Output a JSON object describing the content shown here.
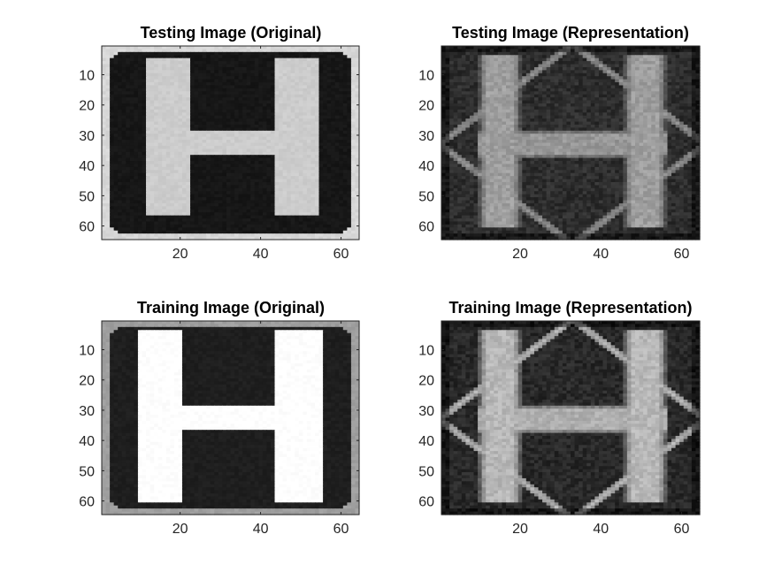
{
  "figure": {
    "background": "#ffffff",
    "axes_color": "#262626",
    "colormap": "gray"
  },
  "chart_data": [
    {
      "type": "heatmap",
      "id": "test-original",
      "title": "Testing Image (Original)",
      "xlim": [
        0.5,
        64.5
      ],
      "ylim": [
        0.5,
        64.5
      ],
      "xticks": [
        20,
        40,
        60
      ],
      "yticks": [
        10,
        20,
        30,
        40,
        50,
        60
      ],
      "xticklabels": [
        "20",
        "40",
        "60"
      ],
      "yticklabels": [
        "10",
        "20",
        "30",
        "40",
        "50",
        "60"
      ],
      "grid": false,
      "y_reversed": true,
      "image": {
        "kind": "sign-H",
        "plate_level": 0.09,
        "border_level": 0.84,
        "letter_level": 0.8,
        "letter_vertical_bars": [
          [
            11,
            21
          ],
          [
            43,
            53
          ]
        ],
        "letter_rows": [
          4,
          55
        ],
        "letter_crossbar_rows": [
          28,
          35
        ]
      }
    },
    {
      "type": "heatmap",
      "id": "test-representation",
      "title": "Testing Image (Representation)",
      "xlim": [
        0.5,
        64.5
      ],
      "ylim": [
        0.5,
        64.5
      ],
      "xticks": [
        20,
        40,
        60
      ],
      "yticks": [
        10,
        20,
        30,
        40,
        50,
        60
      ],
      "xticklabels": [
        "20",
        "40",
        "60"
      ],
      "yticklabels": [
        "10",
        "20",
        "30",
        "40",
        "50",
        "60"
      ],
      "grid": false,
      "y_reversed": true,
      "image": {
        "kind": "reconstruction-H",
        "background_level": 0.18,
        "letter_level": 0.62,
        "diamond_level": 0.55,
        "letter_vertical_bars": [
          [
            9,
            19
          ],
          [
            45,
            55
          ]
        ],
        "letter_rows": [
          3,
          59
        ],
        "letter_crossbar_rows": [
          28,
          36
        ]
      }
    },
    {
      "type": "heatmap",
      "id": "train-original",
      "title": "Training Image (Original)",
      "xlim": [
        0.5,
        64.5
      ],
      "ylim": [
        0.5,
        64.5
      ],
      "xticks": [
        20,
        40,
        60
      ],
      "yticks": [
        10,
        20,
        30,
        40,
        50,
        60
      ],
      "xticklabels": [
        "20",
        "40",
        "60"
      ],
      "yticklabels": [
        "10",
        "20",
        "30",
        "40",
        "50",
        "60"
      ],
      "grid": false,
      "y_reversed": true,
      "image": {
        "kind": "sign-H",
        "plate_level": 0.12,
        "border_level": 0.62,
        "letter_level": 1.0,
        "letter_vertical_bars": [
          [
            9,
            19
          ],
          [
            43,
            54
          ]
        ],
        "letter_rows": [
          3,
          59
        ],
        "letter_crossbar_rows": [
          28,
          35
        ]
      }
    },
    {
      "type": "heatmap",
      "id": "train-representation",
      "title": "Training Image (Representation)",
      "xlim": [
        0.5,
        64.5
      ],
      "ylim": [
        0.5,
        64.5
      ],
      "xticks": [
        20,
        40,
        60
      ],
      "yticks": [
        10,
        20,
        30,
        40,
        50,
        60
      ],
      "xticklabels": [
        "20",
        "40",
        "60"
      ],
      "yticklabels": [
        "10",
        "20",
        "30",
        "40",
        "50",
        "60"
      ],
      "grid": false,
      "y_reversed": true,
      "image": {
        "kind": "reconstruction-H",
        "background_level": 0.16,
        "letter_level": 0.72,
        "diamond_level": 0.7,
        "letter_vertical_bars": [
          [
            9,
            19
          ],
          [
            45,
            55
          ]
        ],
        "letter_rows": [
          3,
          59
        ],
        "letter_crossbar_rows": [
          28,
          36
        ]
      }
    }
  ]
}
